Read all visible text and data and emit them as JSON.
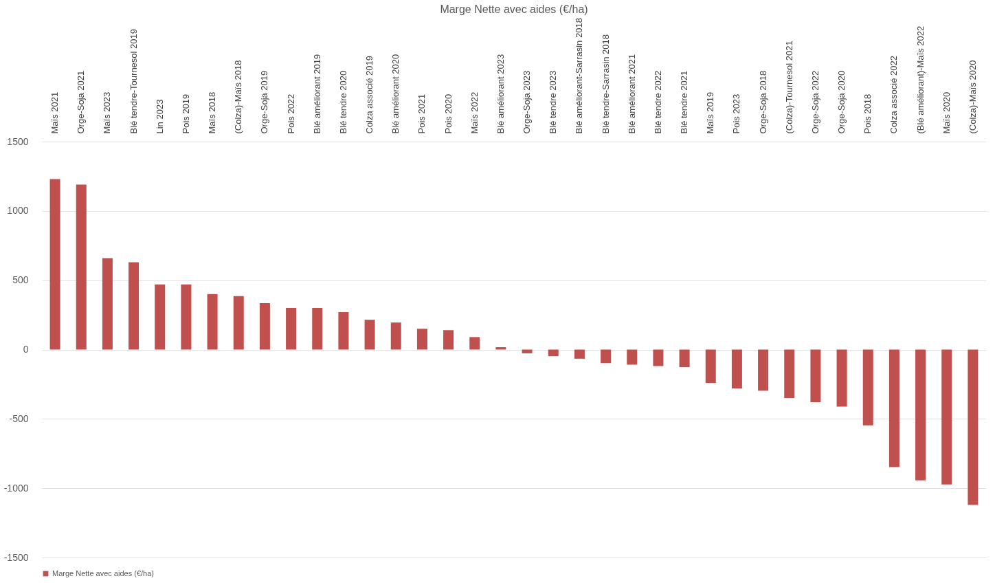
{
  "chart_data": {
    "type": "bar",
    "title": "Marge Nette avec aides (€/ha)",
    "categories": [
      "Maïs 2021",
      "Orge-Soja 2021",
      "Maïs 2023",
      "Blé tendre-Tournesol 2019",
      "Lin 2023",
      "Pois 2019",
      "Maïs 2018",
      "(Colza)-Maïs 2018",
      "Orge-Soja 2019",
      "Pois 2022",
      "Blé améliorant 2019",
      "Blé tendre 2020",
      "Colza associé 2019",
      "Blé améliorant 2020",
      "Pois 2021",
      "Pois 2020",
      "Maïs 2022",
      "Blé améliorant 2023",
      "Orge-Soja 2023",
      "Blé tendre 2023",
      "Blé améliorant-Sarrasin 2018",
      "Blé tendre-Sarrasin 2018",
      "Blé améliorant 2021",
      "Blé tendre 2022",
      "Blé tendre 2021",
      "Maïs 2019",
      "Pois 2023",
      "Orge-Soja 2018",
      "(Colza)-Tournesol 2021",
      "Orge-Soja 2022",
      "Orge-Soja 2020",
      "Pois 2018",
      "Colza associé 2022",
      "(Blé améliorant)-Maïs 2022",
      "Maïs 2020",
      "(Colza)-Maïs 2020"
    ],
    "series": [
      {
        "name": "Marge Nette avec aides (€/ha)",
        "color": "#c0504d",
        "values": [
          1230,
          1190,
          660,
          630,
          470,
          470,
          400,
          385,
          335,
          300,
          300,
          270,
          215,
          195,
          150,
          140,
          90,
          17,
          -27,
          -48,
          -66,
          -98,
          -109,
          -119,
          -127,
          -241,
          -281,
          -297,
          -350,
          -379,
          -411,
          -547,
          -848,
          -943,
          -973,
          -1121
        ]
      }
    ],
    "ylim": [
      -1500,
      1500
    ],
    "yticks": [
      -1500,
      -1000,
      -500,
      0,
      500,
      1000,
      1500
    ],
    "grid": "y",
    "legend": "bottom"
  }
}
